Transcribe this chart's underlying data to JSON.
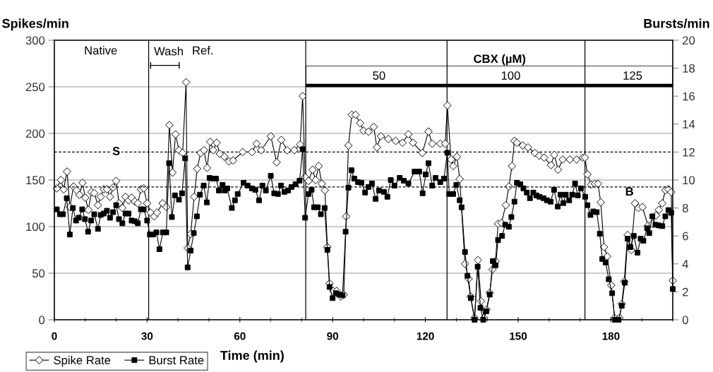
{
  "chart_data": {
    "type": "line",
    "xlabel": "Time (min)",
    "ylabel": "Spikes/min",
    "y2label": "Bursts/min",
    "xlim": [
      0,
      200
    ],
    "xticks": [
      0,
      {
        "value": 10,
        "label": null
      },
      {
        "value": 20,
        "label": null
      },
      30,
      {
        "value": 40,
        "label": null
      },
      {
        "value": 50,
        "label": null
      },
      60,
      {
        "value": 70,
        "label": null
      },
      {
        "value": 80,
        "label": null
      },
      90,
      {
        "value": 100,
        "label": null
      },
      {
        "value": 110,
        "label": null
      },
      120,
      {
        "value": 130,
        "label": null
      },
      {
        "value": 140,
        "label": null
      },
      150,
      {
        "value": 160,
        "label": null
      },
      {
        "value": 170,
        "label": null
      },
      180,
      {
        "value": 190,
        "label": null
      },
      {
        "value": 200,
        "label": null
      }
    ],
    "ylim": [
      0,
      300
    ],
    "yticks": [
      0,
      50,
      100,
      150,
      200,
      250,
      300
    ],
    "y2lim": [
      0,
      20
    ],
    "y2ticks": [
      0,
      2,
      4,
      6,
      8,
      10,
      12,
      14,
      16,
      18,
      20
    ],
    "grid": "y",
    "legend": "bottom left",
    "line_style": "solid",
    "ref_lines": [
      {
        "axis": "x",
        "value": 30.5,
        "label": null,
        "color": "#000000",
        "line_style": "solid"
      },
      {
        "axis": "x",
        "value": 81.3,
        "label": null,
        "color": "#000000",
        "line_style": "solid"
      },
      {
        "axis": "x",
        "value": 127,
        "label": null,
        "color": "#000000",
        "line_style": "solid"
      },
      {
        "axis": "x",
        "value": 171.6,
        "label": null,
        "color": "#000000",
        "line_style": "solid"
      },
      {
        "axis": "y",
        "value": 180,
        "label": "S",
        "color": "#000000",
        "line_style": "dashed"
      },
      {
        "axis": "y2",
        "value": 9.5,
        "label": "B",
        "color": "#000000",
        "line_style": "dashed"
      }
    ],
    "annotations": [
      "Native",
      "Wash",
      "Ref.",
      "CBX (µM)",
      "50",
      "100",
      "125"
    ],
    "series": [
      {
        "name": "Spike Rate",
        "color": "#000000",
        "marker": "diamond",
        "axis": "y",
        "x": [
          0.8,
          2.1,
          3,
          4.1,
          5,
          6.2,
          7.2,
          8.1,
          9.1,
          10,
          11,
          12,
          12.9,
          14.1,
          15,
          16,
          17,
          18,
          19,
          20,
          20.9,
          22,
          23,
          24,
          25,
          26,
          27,
          28,
          28.9,
          30,
          31.1,
          32.3,
          33.2,
          35,
          36.2,
          37.2,
          38.2,
          39.2,
          40.3,
          41.5,
          42.6,
          43.1,
          44.1,
          45.2,
          46.2,
          47.3,
          48.4,
          49.4,
          50.4,
          51.4,
          52.5,
          53.5,
          55,
          56.5,
          57.8,
          60.9,
          63.9,
          65.4,
          66.9,
          70,
          71.9,
          73.4,
          75.3,
          77.6,
          79.5,
          80.3,
          81.1,
          82.2,
          83.5,
          84.5,
          85.5,
          86.5,
          87.5,
          88.3,
          89,
          90.2,
          91.3,
          92.7,
          93.6,
          94.4,
          95.1,
          96.2,
          97.4,
          98.9,
          100,
          101.6,
          103.3,
          104.3,
          105.6,
          108,
          110.4,
          112.6,
          114.5,
          116,
          119,
          121,
          122.2,
          124.8,
          126.4,
          127.1,
          128.3,
          129,
          130.2,
          131.1,
          132.8,
          134,
          134.6,
          135.9,
          137,
          138,
          139,
          139.8,
          140.8,
          141.7,
          142.7,
          143.5,
          144.6,
          146,
          147,
          148,
          148.8,
          149.6,
          151.5,
          153.2,
          155.4,
          156.8,
          158.4,
          160.6,
          161.7,
          162.9,
          164.4,
          166.7,
          168.9,
          170.9,
          171.6,
          172.4,
          173.6,
          174.8,
          175.8,
          176.7,
          177.8,
          178.8,
          180.1,
          181.2,
          182.8,
          183.5,
          184.3,
          185.4,
          186.6,
          187.8,
          188.9,
          190.2,
          192,
          193.4,
          194.6,
          195.5,
          196.6,
          197.6,
          198.6,
          199.5,
          200
        ],
        "values": [
          141,
          150,
          140,
          159,
          121,
          143,
          139,
          134,
          147,
          131,
          118,
          137,
          136,
          123,
          132,
          140,
          140,
          132,
          142,
          149,
          125,
          120,
          132,
          128,
          131,
          127,
          125,
          140,
          141,
          125,
          115,
          111,
          115,
          125,
          121,
          209,
          158,
          199,
          182,
          179,
          255,
          77,
          92,
          132,
          162,
          179,
          182,
          163,
          191,
          182,
          190,
          178,
          175,
          170,
          171,
          180,
          180,
          189,
          182,
          197,
          169,
          193,
          182,
          182,
          188,
          240,
          153,
          149,
          161,
          150,
          165,
          146,
          139,
          78,
          39,
          31,
          31,
          25,
          27,
          111,
          187,
          220,
          220,
          211,
          203,
          202,
          207,
          185,
          197,
          194,
          192,
          190,
          199,
          190,
          179,
          202,
          189,
          189,
          189,
          230,
          172,
          165,
          175,
          151,
          60,
          44,
          25,
          2,
          64,
          20,
          2,
          11,
          29,
          54,
          63,
          103,
          104,
          123,
          143,
          165,
          192,
          190,
          187,
          185,
          179,
          176,
          174,
          166,
          177,
          161,
          172,
          172,
          172,
          174,
          174,
          156,
          145,
          146,
          146,
          126,
          78,
          68,
          37,
          2,
          2,
          17,
          41,
          91,
          75,
          125,
          120,
          121,
          101,
          103,
          112,
          118,
          125,
          139,
          140,
          137,
          42
        ]
      },
      {
        "name": "Burst Rate",
        "color": "#000000",
        "marker": "square",
        "axis": "y2",
        "x": [
          0.8,
          1.8,
          2.8,
          4,
          5,
          6,
          7,
          7.9,
          9,
          9.9,
          10.9,
          11.9,
          12.9,
          14.1,
          15,
          16,
          17,
          18,
          19,
          20,
          20.9,
          22,
          23,
          24,
          25,
          26,
          27,
          28,
          28.9,
          30,
          30.9,
          31.9,
          33,
          34,
          35.1,
          36.2,
          37.1,
          38,
          39,
          40.3,
          41.3,
          42.3,
          43.1,
          44.1,
          45.1,
          46.1,
          47.1,
          48.3,
          49.3,
          50.2,
          51.3,
          52.3,
          53.2,
          54.4,
          55.1,
          55.9,
          57.4,
          58.4,
          59.3,
          61.2,
          62.5,
          63.9,
          65,
          66.2,
          67.3,
          68.4,
          70,
          71.1,
          72.3,
          73.3,
          74.4,
          75.6,
          76.7,
          78,
          79.3,
          80.3,
          81.1,
          82.2,
          83.2,
          84,
          85.2,
          86.2,
          87.4,
          88.3,
          89,
          90,
          91.1,
          92.1,
          93.2,
          94.2,
          95.1,
          96.1,
          97,
          98.2,
          99.3,
          100.5,
          101.6,
          102.7,
          103.9,
          105,
          106.6,
          107.7,
          108.8,
          110,
          111.7,
          113,
          114.5,
          116.5,
          118,
          119.1,
          120.1,
          121,
          122.2,
          123.3,
          124.8,
          126,
          127.1,
          127.7,
          129,
          130,
          131.1,
          131.7,
          132.8,
          133.6,
          134.7,
          135.9,
          136.9,
          137.8,
          138.7,
          139.7,
          140.8,
          141.8,
          142.7,
          143.5,
          144.8,
          145.8,
          147,
          147.8,
          148.8,
          149.6,
          150.7,
          151.7,
          152.8,
          153.8,
          154.9,
          155.9,
          156.9,
          158.2,
          159.3,
          160.5,
          161.6,
          162.8,
          163.7,
          164.6,
          165.4,
          166.5,
          167.5,
          168.4,
          169.3,
          170.3,
          171.7,
          172.4,
          173.4,
          174.3,
          175.4,
          176.4,
          177.2,
          178.3,
          179.3,
          180.4,
          181.3,
          182.5,
          183.5,
          184.5,
          185.4,
          186.3,
          187.4,
          188.6,
          189.6,
          190.5,
          191.7,
          192.4,
          193.4,
          194.4,
          195.5,
          196.6,
          197.6,
          198.6,
          199.5,
          200
        ],
        "values": [
          7.9,
          7.55,
          7.55,
          8.7,
          6.1,
          8.0,
          7.1,
          7.3,
          7.9,
          7.2,
          6.3,
          7.1,
          7.55,
          6.5,
          7.5,
          7.6,
          7.8,
          7.3,
          7.7,
          8.2,
          7.2,
          6.9,
          7.6,
          7.6,
          7.1,
          7.05,
          6.9,
          7.9,
          7.9,
          7.1,
          6.1,
          6.1,
          6.25,
          5.05,
          6.25,
          6.25,
          11.2,
          7.35,
          8.9,
          8.6,
          9.05,
          11.55,
          3.75,
          4.95,
          6.2,
          7.4,
          8.95,
          9.6,
          8.4,
          10.15,
          10.1,
          10.1,
          9.25,
          9.65,
          9.25,
          9.4,
          8.0,
          8.55,
          9.0,
          9.8,
          9.6,
          9.4,
          9.3,
          8.55,
          9.6,
          9.25,
          10.3,
          9.05,
          9.0,
          9.6,
          9.15,
          9.25,
          9.5,
          9.7,
          9.95,
          12.2,
          7.3,
          9.0,
          9.3,
          8.05,
          8.05,
          7.55,
          8.0,
          5.0,
          2.35,
          1.55,
          1.9,
          1.8,
          1.75,
          6.3,
          9.45,
          10.7,
          10.1,
          9.85,
          9.8,
          9.1,
          9.5,
          9.75,
          8.65,
          9.25,
          9.15,
          8.8,
          10.0,
          9.6,
          10.15,
          9.95,
          9.75,
          10.6,
          10.6,
          9.05,
          10.4,
          11.2,
          9.6,
          10.15,
          9.85,
          10.1,
          11.95,
          9.0,
          9.0,
          9.65,
          8.55,
          8.05,
          4.85,
          3.15,
          1.55,
          0,
          3.8,
          0.85,
          0,
          0.6,
          1.8,
          4.2,
          3.9,
          5.7,
          6.0,
          6.8,
          6.65,
          7.35,
          8.45,
          9.8,
          9.7,
          9.4,
          9.1,
          8.7,
          9.1,
          8.9,
          8.8,
          8.7,
          8.55,
          8.45,
          9.3,
          8.1,
          8.95,
          8.35,
          8.95,
          8.55,
          8.95,
          9.75,
          8.9,
          9.4,
          8.8,
          8.2,
          7.5,
          7.75,
          7.7,
          6.15,
          4.35,
          4.1,
          2.9,
          1.9,
          0,
          0,
          1.0,
          2.65,
          5.8,
          5.2,
          6.0,
          4.8,
          5.8,
          5.65,
          6.55,
          6.2,
          7.4,
          6.8,
          6.75,
          6.7,
          7.4,
          7.85,
          7.65,
          2.2
        ]
      }
    ]
  }
}
